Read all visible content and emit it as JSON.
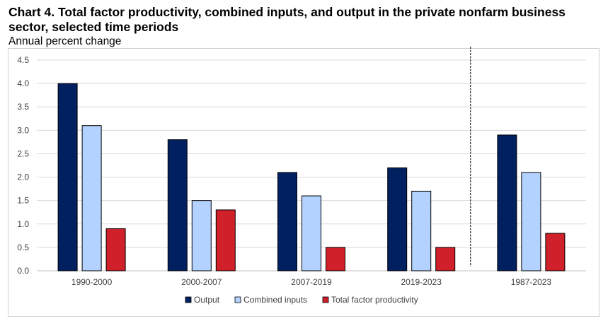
{
  "chart_data": {
    "type": "bar",
    "title": "Chart 4. Total factor productivity, combined inputs, and output in the private nonfarm business sector, selected time periods",
    "subtitle": "Annual percent change",
    "categories": [
      "1990-2000",
      "2000-2007",
      "2007-2019",
      "2019-2023",
      "1987-2023"
    ],
    "series": [
      {
        "name": "Output",
        "color": "#002060",
        "values": [
          4.0,
          2.8,
          2.1,
          2.2,
          2.9
        ]
      },
      {
        "name": "Combined inputs",
        "color": "#b4d2ff",
        "values": [
          3.1,
          1.5,
          1.6,
          1.7,
          2.1
        ]
      },
      {
        "name": "Total factor productivity",
        "color": "#d0202a",
        "values": [
          0.9,
          1.3,
          0.5,
          0.5,
          0.8
        ]
      }
    ],
    "ylim": [
      0,
      4.5
    ],
    "yticks": [
      "0.0",
      "0.5",
      "1.0",
      "1.5",
      "2.0",
      "2.5",
      "3.0",
      "3.5",
      "4.0",
      "4.5"
    ],
    "grid": true,
    "legend_position": "bottom",
    "separator_before_category": 4
  }
}
